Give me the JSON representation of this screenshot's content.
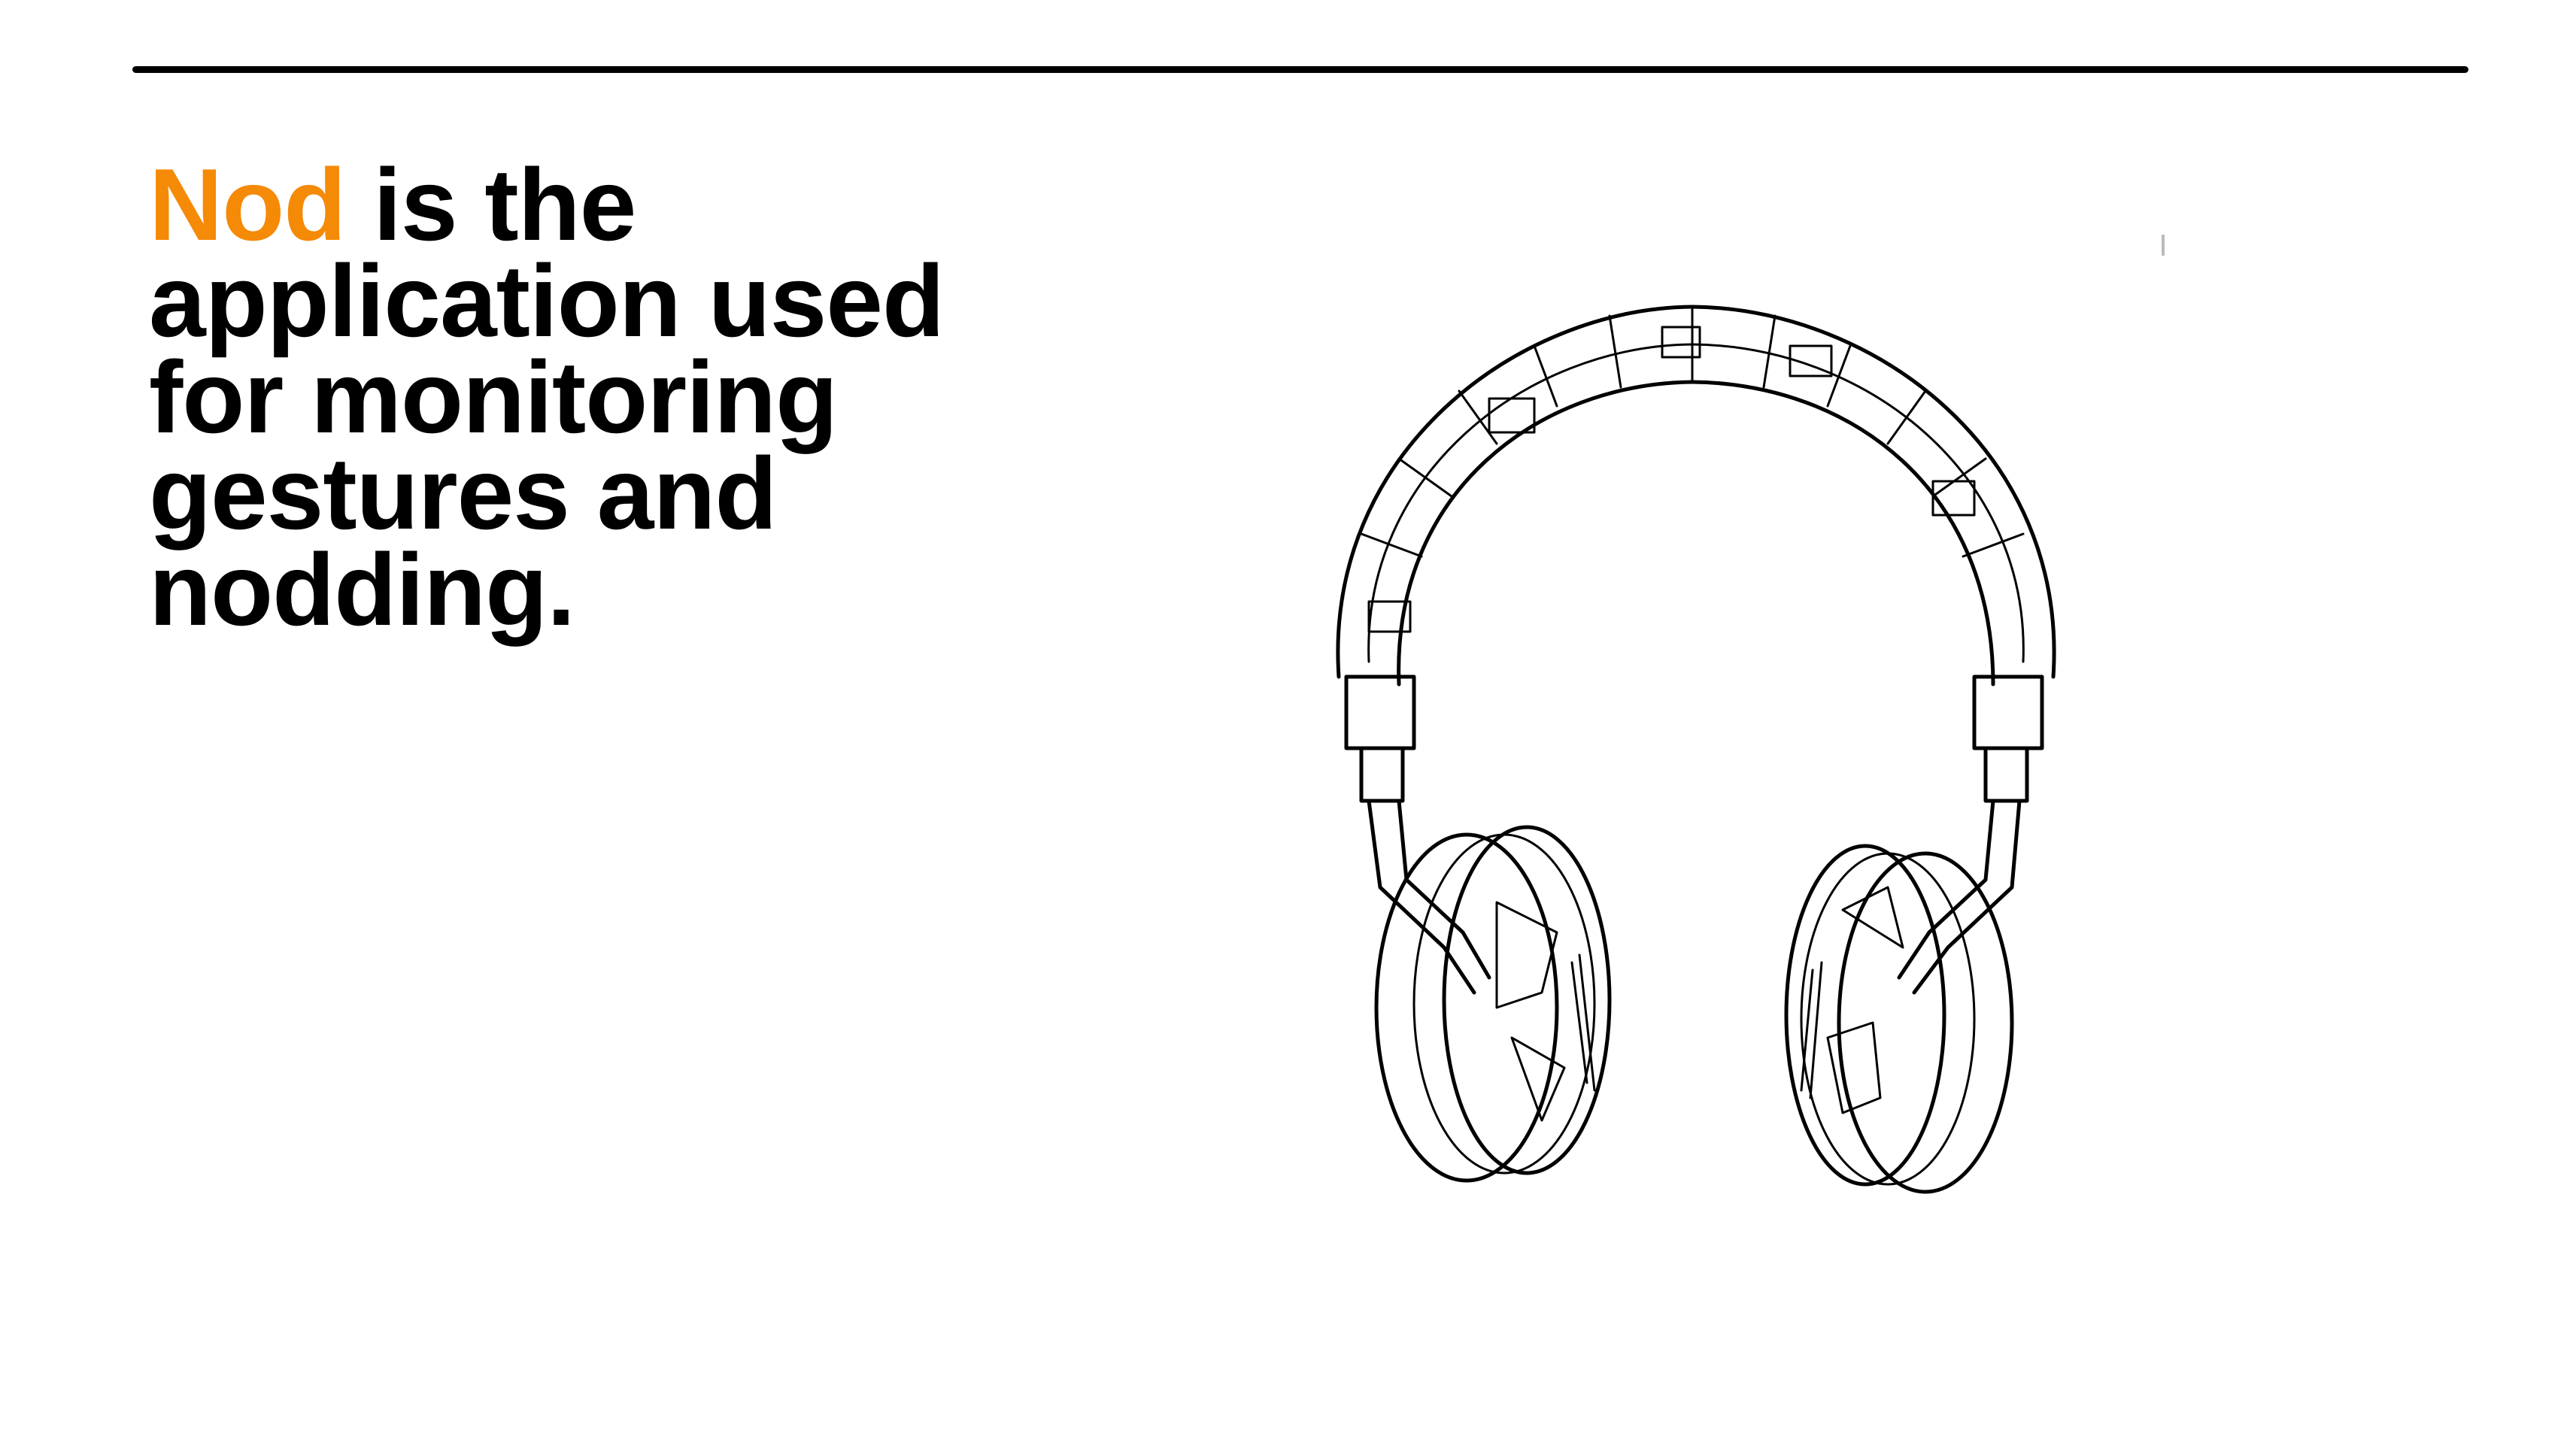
{
  "slide": {
    "headline_accent": "Nod",
    "headline_rest": " is the application used for monitoring gestures and nodding."
  },
  "colors": {
    "accent": "#f58a07",
    "text": "#000000",
    "rule": "#000000",
    "background": "#ffffff"
  },
  "illustration": {
    "icon": "headphones-sketch-icon"
  }
}
